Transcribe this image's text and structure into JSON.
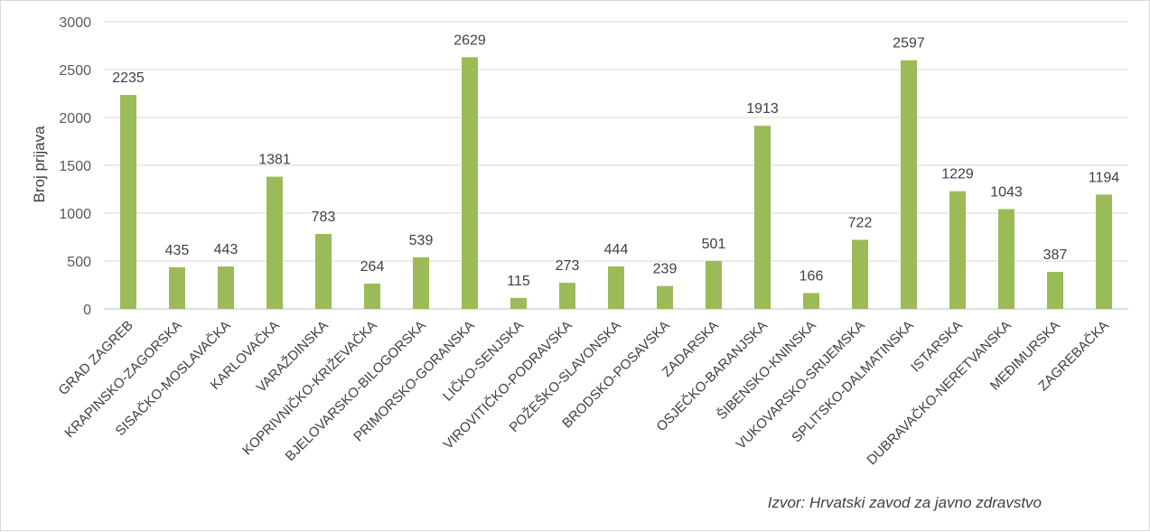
{
  "chart_data": {
    "type": "bar",
    "ylabel": "Broj prijava",
    "ylim": [
      0,
      3000
    ],
    "yticks": [
      0,
      500,
      1000,
      1500,
      2000,
      2500,
      3000
    ],
    "grid": true,
    "bar_color": "#9bbb59",
    "categories": [
      "GRAD ZAGREB",
      "KRAPINSKO-ZAGORSKA",
      "SISAČKO-MOSLAVAČKA",
      "KARLOVAČKA",
      "VARAŽDINSKA",
      "KOPRIVNIČKO-KRIŽEVAČKA",
      "BJELOVARSKO-BILOGORSKA",
      "PRIMORSKO-GORANSKA",
      "LIČKO-SENJSKA",
      "VIROVITIČKO-PODRAVSKA",
      "POŽEŠKO-SLAVONSKA",
      "BRODSKO-POSAVSKA",
      "ZADARSKA",
      "OSJEČKO-BARANJSKA",
      "ŠIBENSKO-KNINSKA",
      "VUKOVARSKO-SRIJEMSKA",
      "SPLITSKO-DALMATINSKA",
      "ISTARSKA",
      "DUBRAVAČKO-NERETVANSKA",
      "MEĐIMURSKA",
      "ZAGREBAČKA"
    ],
    "values": [
      2235,
      435,
      443,
      1381,
      783,
      264,
      539,
      2629,
      115,
      273,
      444,
      239,
      501,
      1913,
      166,
      722,
      2597,
      1229,
      1043,
      387,
      1194
    ]
  },
  "source": "Izvor: Hrvatski zavod za javno zdravstvo"
}
